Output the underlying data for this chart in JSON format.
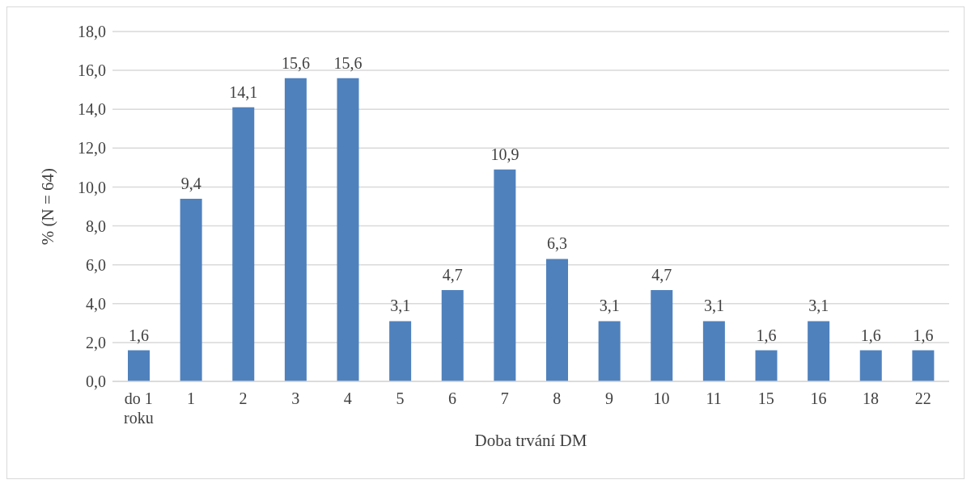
{
  "chart_data": {
    "type": "bar",
    "xlabel": "Doba trvání DM",
    "ylabel": "% (N = 64)",
    "categories": [
      "do 1 roku",
      "1",
      "2",
      "3",
      "4",
      "5",
      "6",
      "7",
      "8",
      "9",
      "10",
      "11",
      "15",
      "16",
      "18",
      "22"
    ],
    "values": [
      1.6,
      9.4,
      14.1,
      15.6,
      15.6,
      3.1,
      4.7,
      10.9,
      6.3,
      3.1,
      4.7,
      3.1,
      1.6,
      3.1,
      1.6,
      1.6
    ],
    "value_labels": [
      "1,6",
      "9,4",
      "14,1",
      "15,6",
      "15,6",
      "3,1",
      "4,7",
      "10,9",
      "6,3",
      "3,1",
      "4,7",
      "3,1",
      "1,6",
      "3,1",
      "1,6",
      "1,6"
    ],
    "color": "#4f81bd",
    "ylim": [
      0,
      18
    ],
    "yticks": [
      {
        "value": 0,
        "label": "0,0"
      },
      {
        "value": 2,
        "label": "2,0"
      },
      {
        "value": 4,
        "label": "4,0"
      },
      {
        "value": 6,
        "label": "6,0"
      },
      {
        "value": 8,
        "label": "8,0"
      },
      {
        "value": 10,
        "label": "10,0"
      },
      {
        "value": 12,
        "label": "12,0"
      },
      {
        "value": 14,
        "label": "14,0"
      },
      {
        "value": 16,
        "label": "16,0"
      },
      {
        "value": 18,
        "label": "18,0"
      }
    ],
    "grid": "y",
    "legend": false
  }
}
